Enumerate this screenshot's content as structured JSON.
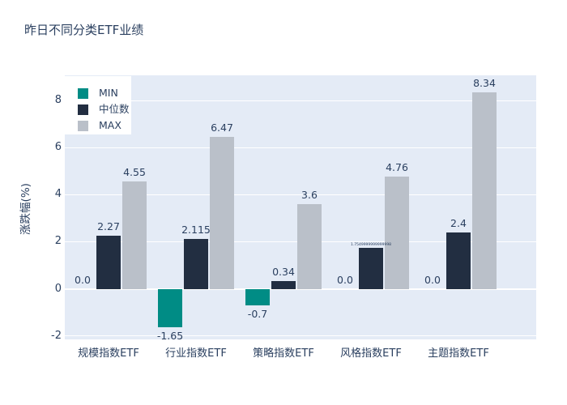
{
  "page": {
    "title": "昨日不同分类ETF业绩"
  },
  "chart_data": {
    "type": "bar",
    "title": "昨日不同分类ETF业绩",
    "xlabel": "",
    "ylabel": "涨跌幅(%)",
    "categories": [
      "规模指数ETF",
      "行业指数ETF",
      "策略指数ETF",
      "风格指数ETF",
      "主题指数ETF"
    ],
    "series": [
      {
        "name": "MIN",
        "color": "#008C85",
        "values": [
          0.0,
          -1.65,
          -0.7,
          0.0,
          0.0
        ],
        "labels": [
          "0.0",
          "-1.65",
          "-0.7",
          "0.0",
          "0.0"
        ],
        "compressed": [
          false,
          false,
          false,
          false,
          false
        ]
      },
      {
        "name": "中位数",
        "color": "#222E41",
        "values": [
          2.27,
          2.115,
          0.34,
          1.755,
          2.4
        ],
        "labels": [
          "2.27",
          "2.115",
          "0.34",
          "1.7549999999999998",
          "2.4"
        ],
        "compressed": [
          false,
          false,
          false,
          true,
          false
        ]
      },
      {
        "name": "MAX",
        "color": "#BAC0C9",
        "values": [
          4.55,
          6.47,
          3.6,
          4.76,
          8.34
        ],
        "labels": [
          "4.55",
          "6.47",
          "3.6",
          "4.76",
          "8.34"
        ],
        "compressed": [
          false,
          false,
          false,
          false,
          false
        ]
      }
    ],
    "yticks": [
      -2,
      0,
      2,
      4,
      6,
      8
    ],
    "ylim": [
      -2.15,
      9.07
    ],
    "grid": true,
    "legend_position": "top-left",
    "colors": {
      "plot_bg": "#E4EBF6",
      "grid": "#FFFFFF",
      "text": "#2A3F5F"
    }
  }
}
